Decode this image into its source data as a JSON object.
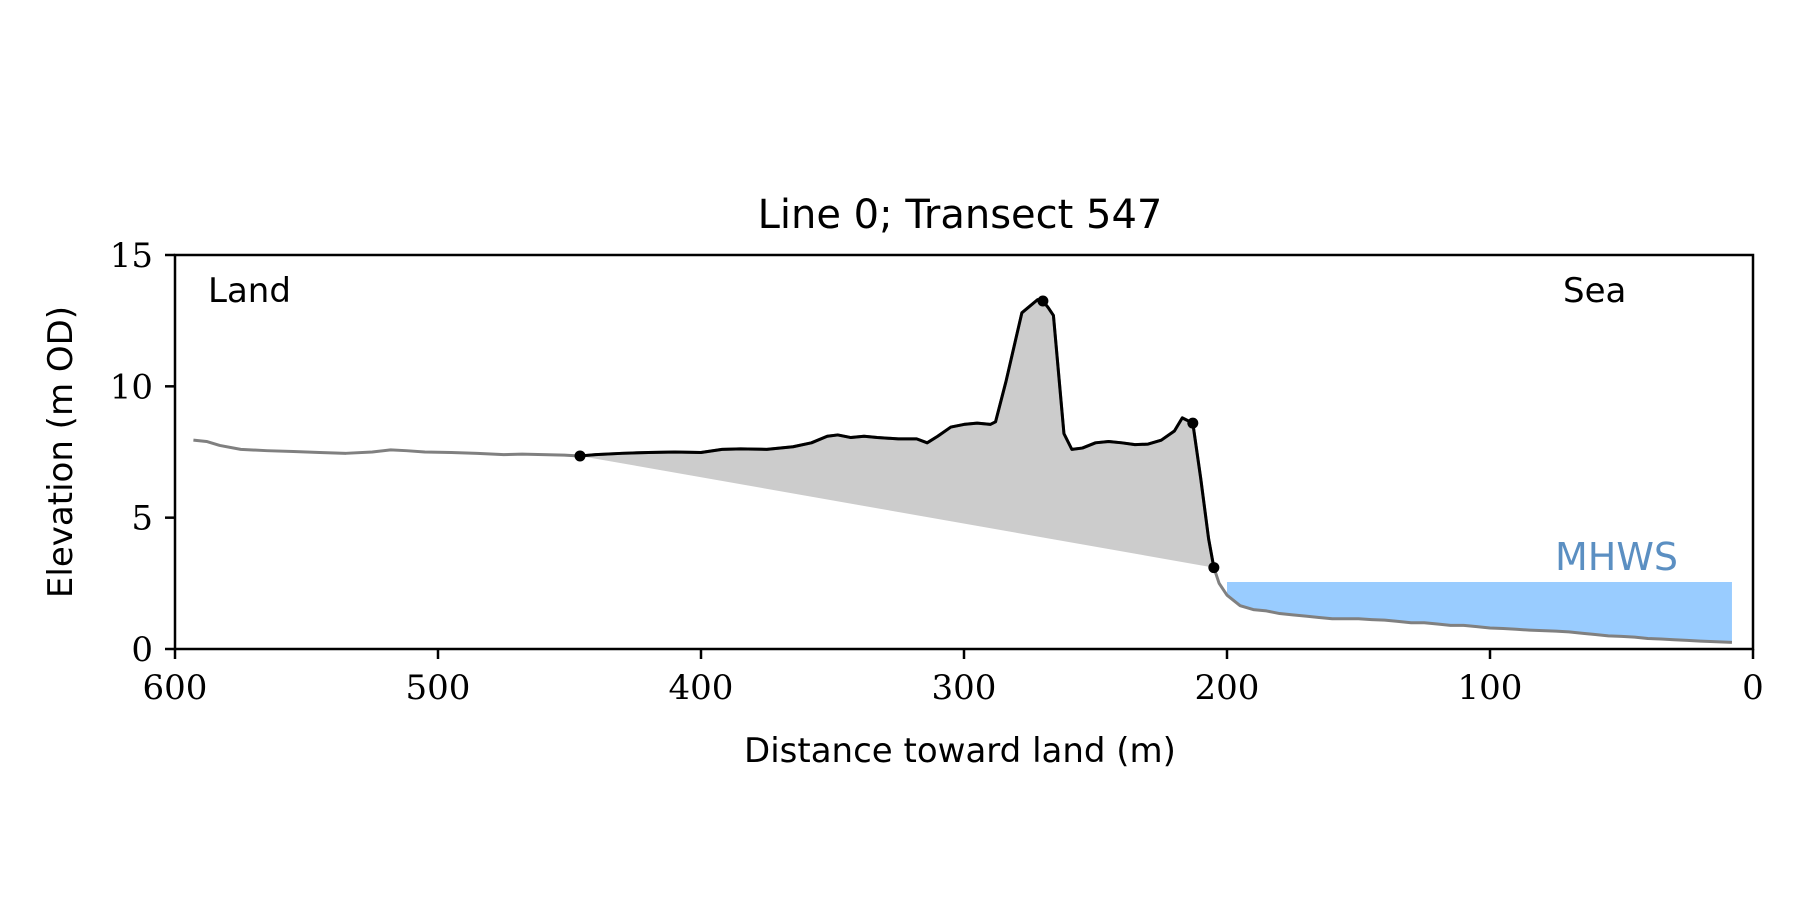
{
  "chart_data": {
    "type": "line",
    "title": "Line 0; Transect 547",
    "xlabel": "Distance toward land (m)",
    "ylabel": "Elevation (m OD)",
    "xlim": [
      600,
      0
    ],
    "ylim": [
      0,
      15
    ],
    "x_ticks": [
      600,
      500,
      400,
      300,
      200,
      100,
      0
    ],
    "y_ticks": [
      0,
      5,
      10,
      15
    ],
    "grid": false,
    "annotations": {
      "land": "Land",
      "sea": "Sea",
      "mhws": "MHWS"
    },
    "mhws_level": 2.55,
    "mhws_x_range": [
      200,
      8
    ],
    "colors": {
      "profile": "#808080",
      "dune": "#000000",
      "fill": "#cccccc",
      "water": "#99ccff",
      "mhws_label": "#5b8fc2"
    },
    "profile": {
      "x": [
        593,
        588,
        583,
        575,
        565,
        555,
        545,
        535,
        525,
        518,
        512,
        505,
        495,
        485,
        475,
        468,
        460,
        452,
        446,
        440,
        430,
        420,
        410,
        400,
        392,
        385,
        375,
        365,
        358,
        352,
        348,
        343,
        338,
        333,
        325,
        318,
        314,
        310,
        305,
        300,
        295,
        290,
        288,
        284,
        278,
        272,
        270,
        268,
        266,
        262,
        259,
        255,
        250,
        245,
        240,
        235,
        230,
        225,
        220,
        217,
        213,
        210,
        207,
        205,
        203,
        200,
        195,
        190,
        185,
        180,
        175,
        170,
        165,
        160,
        155,
        150,
        145,
        140,
        135,
        130,
        125,
        120,
        115,
        110,
        105,
        100,
        95,
        90,
        85,
        80,
        75,
        70,
        65,
        60,
        55,
        50,
        45,
        40,
        35,
        30,
        25,
        20,
        15,
        8
      ],
      "y": [
        7.95,
        7.9,
        7.75,
        7.6,
        7.55,
        7.52,
        7.48,
        7.45,
        7.5,
        7.58,
        7.55,
        7.5,
        7.48,
        7.45,
        7.4,
        7.42,
        7.4,
        7.38,
        7.35,
        7.4,
        7.45,
        7.48,
        7.5,
        7.48,
        7.6,
        7.62,
        7.6,
        7.7,
        7.85,
        8.1,
        8.15,
        8.05,
        8.1,
        8.05,
        8.0,
        8.0,
        7.85,
        8.1,
        8.45,
        8.55,
        8.6,
        8.55,
        8.65,
        10.2,
        12.8,
        13.3,
        13.25,
        13.0,
        12.7,
        8.2,
        7.6,
        7.65,
        7.85,
        7.9,
        7.85,
        7.78,
        7.8,
        7.95,
        8.3,
        8.8,
        8.6,
        6.5,
        4.2,
        3.1,
        2.5,
        2.05,
        1.65,
        1.5,
        1.45,
        1.35,
        1.3,
        1.25,
        1.2,
        1.15,
        1.15,
        1.15,
        1.12,
        1.1,
        1.05,
        1.0,
        1.0,
        0.95,
        0.9,
        0.9,
        0.85,
        0.8,
        0.78,
        0.75,
        0.72,
        0.7,
        0.68,
        0.65,
        0.6,
        0.55,
        0.5,
        0.48,
        0.45,
        0.4,
        0.38,
        0.35,
        0.33,
        0.3,
        0.28,
        0.25
      ]
    },
    "dune_segment_x_range": [
      446,
      205
    ],
    "dune_markers": [
      {
        "x": 446,
        "y": 7.35
      },
      {
        "x": 270,
        "y": 13.25
      },
      {
        "x": 213,
        "y": 8.6
      },
      {
        "x": 205,
        "y": 3.1
      }
    ]
  }
}
